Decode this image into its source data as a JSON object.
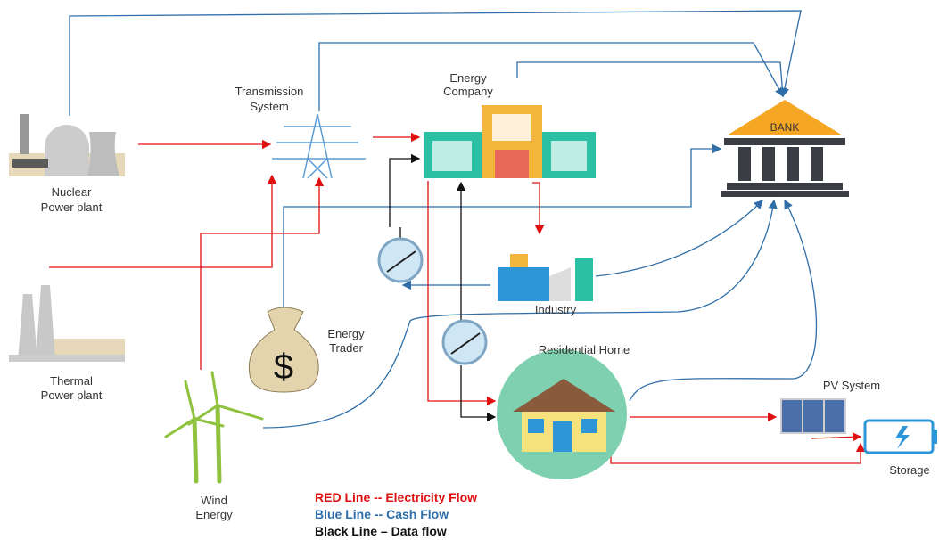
{
  "nodes": [
    {
      "label": [
        "Nuclear",
        "Power plant"
      ]
    },
    {
      "label": [
        "Transmission",
        "System"
      ]
    },
    {
      "label": [
        "Energy",
        "Company"
      ]
    },
    {
      "label": [
        "BANK"
      ]
    },
    {
      "label": [
        "Thermal",
        "Power plant"
      ]
    },
    {
      "label": [
        "Energy",
        "Trader"
      ],
      "symbol": "$"
    },
    {
      "label": [
        "Industry"
      ]
    },
    {
      "label": [
        "Residential Home"
      ]
    },
    {
      "label": [
        "PV System"
      ]
    },
    {
      "label": [
        "Wind",
        "Energy"
      ]
    },
    {
      "label": [
        "Storage"
      ]
    }
  ],
  "legend": [
    "RED Line -- Electricity Flow",
    "Blue Line -- Cash Flow",
    "Black Line – Data flow"
  ]
}
